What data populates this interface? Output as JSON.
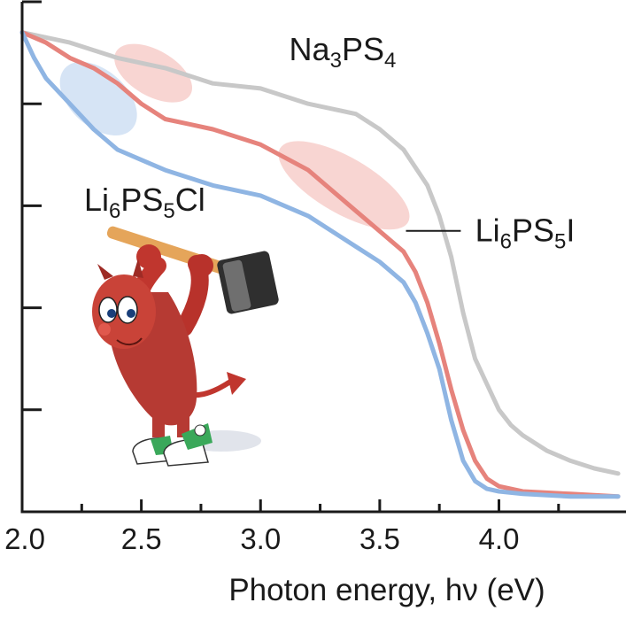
{
  "chart_data": {
    "type": "line",
    "xlabel": "Photon energy, hν (eV)",
    "ylabel": "",
    "xlim": [
      2.0,
      4.5
    ],
    "ylim": [
      0,
      100
    ],
    "x_ticks": [
      "2.0",
      "2.5",
      "3.0",
      "3.5",
      "4.0"
    ],
    "x_tick_values": [
      2.0,
      2.5,
      3.0,
      3.5,
      4.0
    ],
    "x_minor_tick_values": [
      2.25,
      2.75,
      3.25,
      3.75,
      4.25
    ],
    "y_tick_values": [
      20,
      40,
      60,
      80,
      100
    ],
    "y_tick_labels_shown": false,
    "grid": false,
    "legend": "none (labels placed next to curves)",
    "series": [
      {
        "name": "Na3PS4",
        "label_parts": [
          {
            "t": "Na"
          },
          {
            "t": "3",
            "sub": true
          },
          {
            "t": "PS"
          },
          {
            "t": "4",
            "sub": true
          }
        ],
        "color": "#c8c8c8",
        "x": [
          2.0,
          2.2,
          2.4,
          2.6,
          2.8,
          3.0,
          3.2,
          3.4,
          3.5,
          3.6,
          3.7,
          3.75,
          3.8,
          3.85,
          3.9,
          3.95,
          4.0,
          4.05,
          4.1,
          4.2,
          4.3,
          4.4,
          4.5
        ],
        "values": [
          94,
          92,
          89,
          87,
          84,
          83,
          80,
          78,
          75,
          71,
          64,
          58,
          50,
          39,
          30,
          25,
          20,
          17,
          15,
          12,
          10,
          8.5,
          7.5
        ]
      },
      {
        "name": "Li6PS5I",
        "label_parts": [
          {
            "t": "Li"
          },
          {
            "t": "6",
            "sub": true
          },
          {
            "t": "PS"
          },
          {
            "t": "5",
            "sub": true
          },
          {
            "t": "I"
          }
        ],
        "color": "#e6837c",
        "x": [
          2.0,
          2.1,
          2.2,
          2.3,
          2.4,
          2.5,
          2.6,
          2.7,
          2.8,
          3.0,
          3.2,
          3.4,
          3.5,
          3.6,
          3.65,
          3.7,
          3.75,
          3.8,
          3.85,
          3.9,
          3.95,
          4.0,
          4.1,
          4.3,
          4.5
        ],
        "values": [
          94,
          92,
          89,
          87,
          84,
          80,
          77,
          76,
          75,
          72,
          67,
          59,
          55,
          51,
          47,
          41,
          33,
          24,
          16,
          10,
          6.5,
          5,
          4,
          3.5,
          3
        ]
      },
      {
        "name": "Li6PS5Cl",
        "label_parts": [
          {
            "t": "Li"
          },
          {
            "t": "6",
            "sub": true
          },
          {
            "t": "PS"
          },
          {
            "t": "5",
            "sub": true
          },
          {
            "t": "Cl"
          }
        ],
        "color": "#8fb5e3",
        "x": [
          2.0,
          2.05,
          2.1,
          2.2,
          2.3,
          2.4,
          2.5,
          2.6,
          2.8,
          3.0,
          3.2,
          3.4,
          3.5,
          3.6,
          3.65,
          3.7,
          3.75,
          3.8,
          3.85,
          3.9,
          3.95,
          4.0,
          4.1,
          4.3,
          4.5
        ],
        "values": [
          94,
          89,
          85,
          80,
          75,
          71,
          69,
          67,
          64,
          62,
          58,
          52,
          49,
          45,
          41,
          35,
          28,
          18,
          10,
          6,
          4.5,
          4,
          3.5,
          3,
          3
        ]
      }
    ],
    "highlight_regions": [
      {
        "name": "highlight-cl-onset",
        "color": "#c8dbf2",
        "cx": 2.32,
        "cy": 81,
        "rx": 0.19,
        "ry": 5.5,
        "angle_deg": 42
      },
      {
        "name": "highlight-i-onset",
        "color": "#f6c7c3",
        "cx": 2.55,
        "cy": 86,
        "rx": 0.18,
        "ry": 4.5,
        "angle_deg": 30
      },
      {
        "name": "highlight-i-shoulder",
        "color": "#f6c7c3",
        "cx": 3.35,
        "cy": 64,
        "rx": 0.31,
        "ry": 5.5,
        "angle_deg": 30
      }
    ],
    "annotations": [
      {
        "name": "label-na3ps4",
        "series": "Na3PS4",
        "x": 3.12,
        "y": 88.5
      },
      {
        "name": "label-li6ps5cl",
        "series": "Li6PS5Cl",
        "x": 2.26,
        "y": 59
      },
      {
        "name": "label-li6ps5i",
        "series": "Li6PS5I",
        "x": 3.9,
        "y": 53,
        "leader_from_x": 3.61,
        "leader_to_x": 3.84,
        "leader_y": 53
      }
    ]
  },
  "mascot": {
    "name": "FreeBSD daemon mascot holding a hammer",
    "body_color": "#c0362e",
    "hammer_head_color": "#3a3a3a",
    "shoe_color": "#3aa85a"
  }
}
